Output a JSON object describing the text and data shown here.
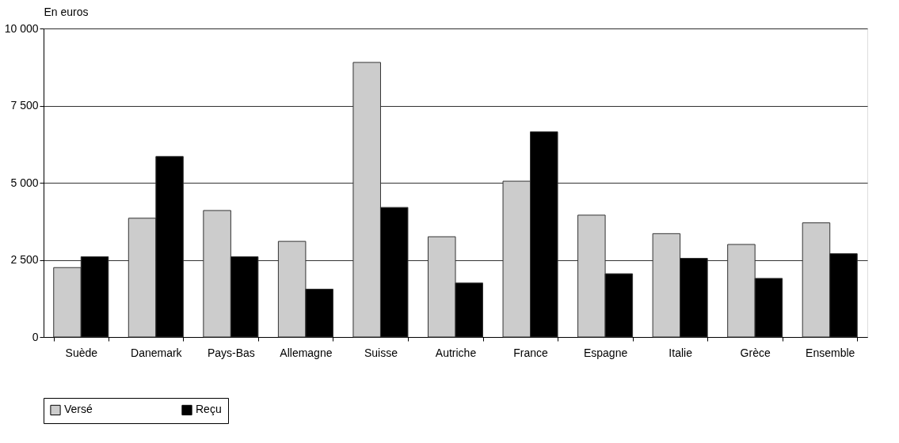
{
  "chart_data": {
    "type": "bar",
    "ylabel": "En euros",
    "categories": [
      "Suède",
      "Danemark",
      "Pays-Bas",
      "Allemagne",
      "Suisse",
      "Autriche",
      "France",
      "Espagne",
      "Italie",
      "Grèce",
      "Ensemble"
    ],
    "series": [
      {
        "name": "Versé",
        "color": "#cccccc",
        "values": [
          2250,
          3850,
          4100,
          3100,
          8900,
          3250,
          5050,
          3950,
          3350,
          3000,
          3700
        ]
      },
      {
        "name": "Reçu",
        "color": "#000000",
        "values": [
          2600,
          5850,
          2600,
          1550,
          4200,
          1750,
          6650,
          2050,
          2550,
          1900,
          2700
        ]
      }
    ],
    "ylim": [
      0,
      10000
    ],
    "yticks": [
      0,
      {
        "value": 2500,
        "label": "2 500"
      },
      {
        "value": 5000,
        "label": "5 000"
      },
      {
        "value": 7500,
        "label": "7 500"
      },
      {
        "value": 10000,
        "label": "10 000"
      }
    ],
    "grid": "y",
    "legend": "bottom"
  }
}
